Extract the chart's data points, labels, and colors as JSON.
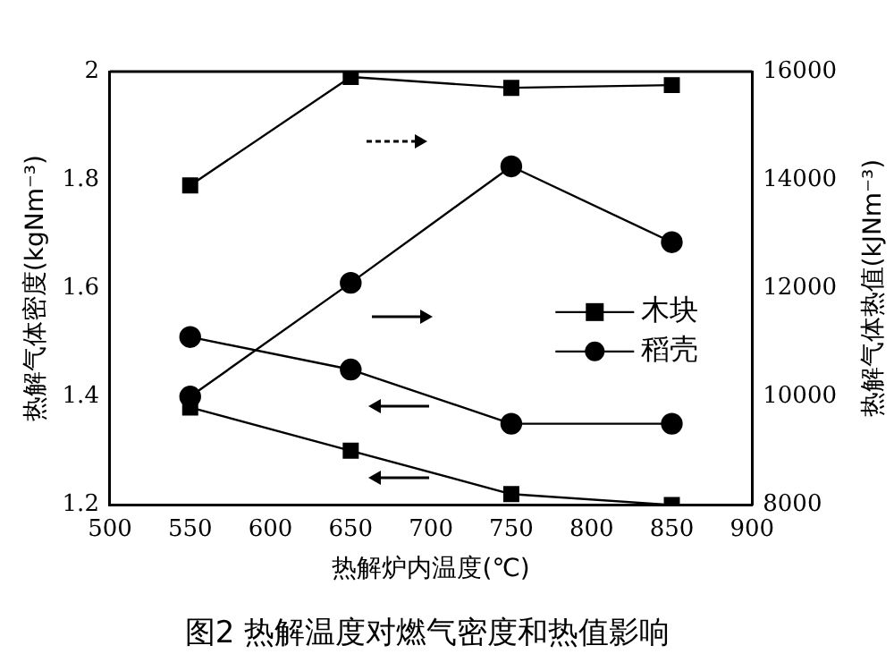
{
  "chart_data": {
    "type": "line",
    "title": "图2 热解温度对燃气密度和热值影响",
    "xlabel": "热解炉内温度(℃)",
    "ylabel": "热解气体密度(kgNm⁻³)",
    "y2label": "热解气体热值(kJNm⁻³)",
    "x": [
      550,
      650,
      750,
      850
    ],
    "series": [
      {
        "name": "木块",
        "color": "#000000",
        "marker": "square",
        "values": [
          1.38,
          1.3,
          1.22,
          1.2
        ]
      },
      {
        "name": "稻壳",
        "color": "#000000",
        "marker": "circle",
        "values": [
          1.51,
          1.45,
          1.35,
          1.35
        ]
      },
      {
        "color": "#000000",
        "marker": "square",
        "axis": "y2",
        "values": [
          13900,
          15900,
          15700,
          15750
        ]
      },
      {
        "color": "#000000",
        "marker": "circle",
        "axis": "y2",
        "values": [
          10000,
          12100,
          14250,
          12850
        ]
      }
    ],
    "xlim": [
      500,
      900
    ],
    "xticks": [
      500,
      550,
      600,
      650,
      700,
      750,
      800,
      850,
      900
    ],
    "ylim": [
      1.2,
      2
    ],
    "yticks": [
      1.2,
      1.4,
      1.6,
      1.8,
      2
    ],
    "y2lim": [
      8000,
      16000
    ],
    "y2ticks": [
      8000,
      10000,
      12000,
      14000,
      16000
    ],
    "grid": false,
    "legend": "right",
    "line_style": "solid"
  }
}
